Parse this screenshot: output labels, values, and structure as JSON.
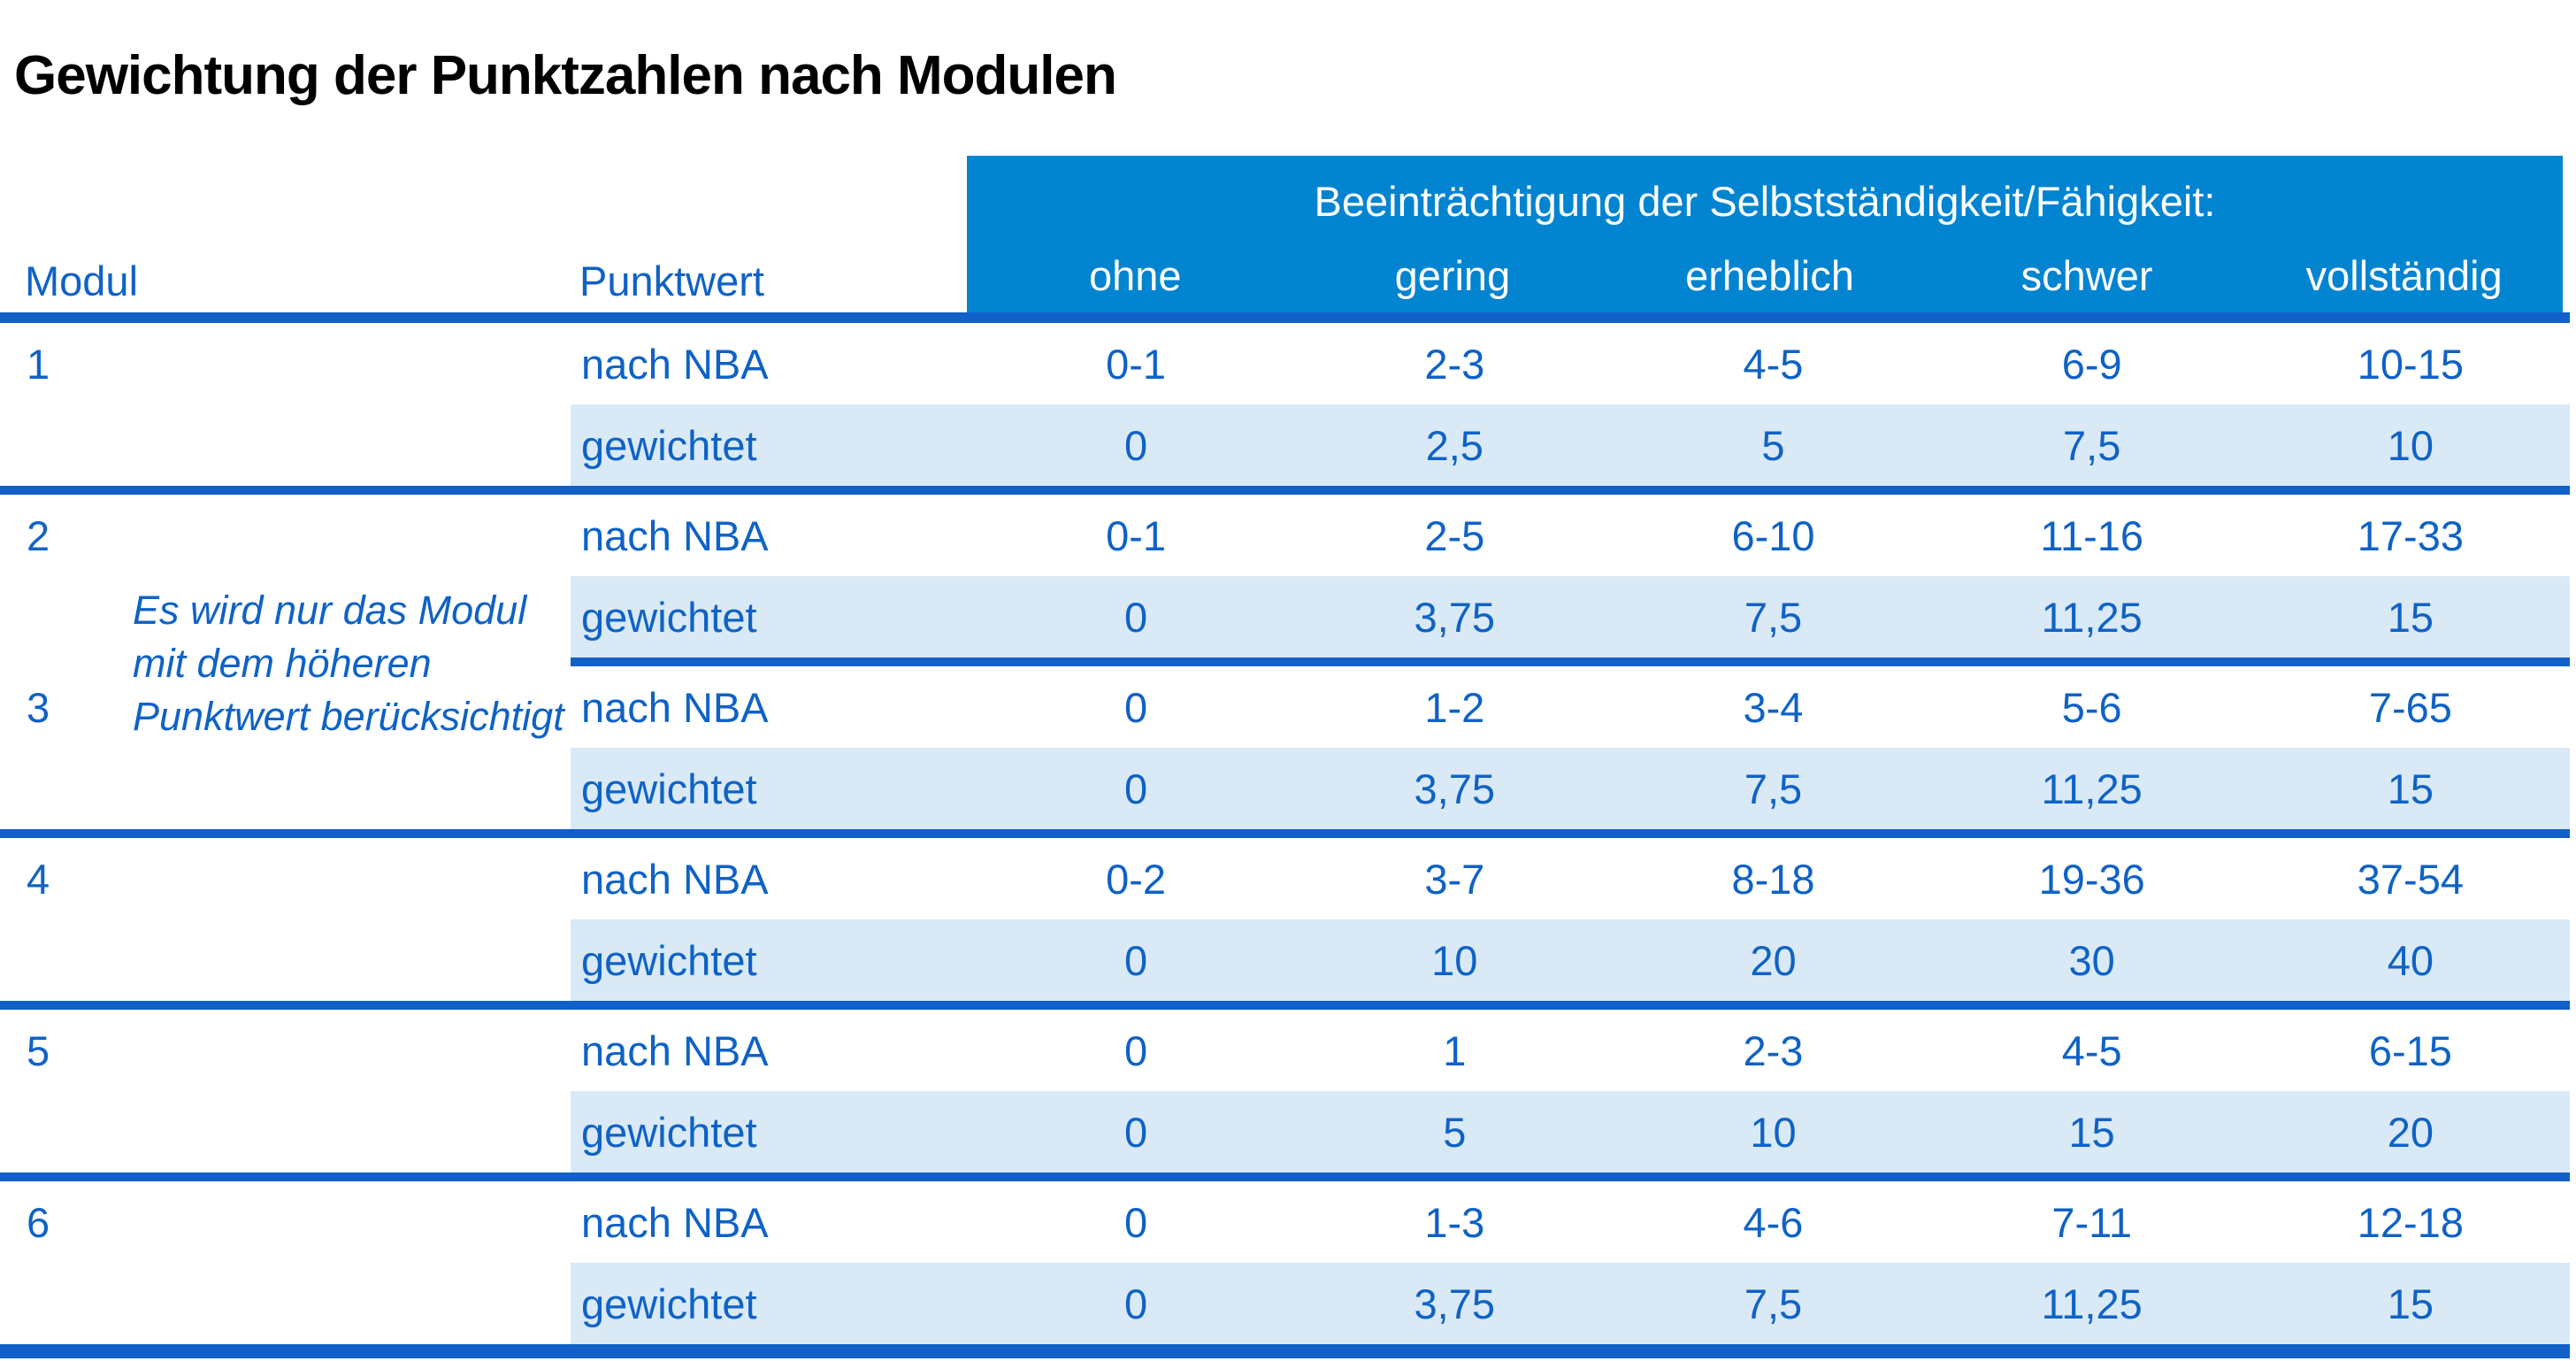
{
  "title": "Gewichtung der Punktzahlen nach Modulen",
  "table": {
    "group_header": "Beeinträchtigung der Selbstständigkeit/Fähigkeit:",
    "col_modul": "Modul",
    "col_punktwert": "Punktwert",
    "severity_cols": [
      "ohne",
      "gering",
      "erheblich",
      "schwer",
      "vollständig"
    ],
    "row_label_nba": "nach NBA",
    "row_label_weighted": "gewichtet",
    "note_lines": [
      "Es wird nur das Modul",
      "mit dem höheren",
      "Punktwert berücksichtigt"
    ],
    "modules": [
      {
        "id": "1",
        "nba": [
          "0-1",
          "2-3",
          "4-5",
          "6-9",
          "10-15"
        ],
        "gewichtet": [
          "0",
          "2,5",
          "5",
          "7,5",
          "10"
        ]
      },
      {
        "id": "2",
        "nba": [
          "0-1",
          "2-5",
          "6-10",
          "11-16",
          "17-33"
        ],
        "gewichtet": [
          "0",
          "3,75",
          "7,5",
          "11,25",
          "15"
        ]
      },
      {
        "id": "3",
        "nba": [
          "0",
          "1-2",
          "3-4",
          "5-6",
          "7-65"
        ],
        "gewichtet": [
          "0",
          "3,75",
          "7,5",
          "11,25",
          "15"
        ]
      },
      {
        "id": "4",
        "nba": [
          "0-2",
          "3-7",
          "8-18",
          "19-36",
          "37-54"
        ],
        "gewichtet": [
          "0",
          "10",
          "20",
          "30",
          "40"
        ]
      },
      {
        "id": "5",
        "nba": [
          "0",
          "1",
          "2-3",
          "4-5",
          "6-15"
        ],
        "gewichtet": [
          "0",
          "5",
          "10",
          "15",
          "20"
        ]
      },
      {
        "id": "6",
        "nba": [
          "0",
          "1-3",
          "4-6",
          "7-11",
          "12-18"
        ],
        "gewichtet": [
          "0",
          "3,75",
          "7,5",
          "11,25",
          "15"
        ]
      }
    ],
    "colors": {
      "header_band_bg": "#0284d0",
      "header_band_text": "#ffffff",
      "accent_text": "#0f62c6",
      "rule_line": "#1060c8",
      "weighted_row_fill": "#d9e9f5",
      "title_text": "#000000"
    }
  }
}
